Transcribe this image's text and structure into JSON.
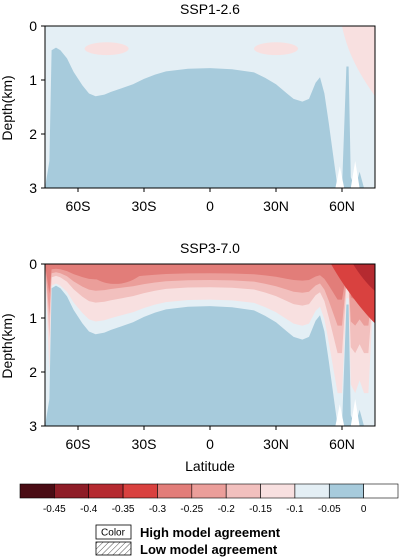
{
  "chart_data": [
    {
      "type": "contour",
      "title": "SSP1-2.6",
      "ylabel": "Depth(km)",
      "xlabel": "",
      "x_ticks": [
        "60S",
        "30S",
        "0",
        "30N",
        "60N"
      ],
      "y_ticks": [
        "0",
        "1",
        "2",
        "3"
      ],
      "xlim": [
        -75,
        75
      ],
      "ylim": [
        3,
        0
      ],
      "bathymetry_depth_km": [
        [
          -73,
          2.5
        ],
        [
          -72,
          0.45
        ],
        [
          -70,
          0.4
        ],
        [
          -68,
          0.45
        ],
        [
          -65,
          0.6
        ],
        [
          -62,
          0.85
        ],
        [
          -58,
          1.1
        ],
        [
          -55,
          1.25
        ],
        [
          -52,
          1.3
        ],
        [
          -48,
          1.27
        ],
        [
          -45,
          1.22
        ],
        [
          -40,
          1.15
        ],
        [
          -35,
          1.08
        ],
        [
          -30,
          0.98
        ],
        [
          -25,
          0.9
        ],
        [
          -20,
          0.84
        ],
        [
          -10,
          0.79
        ],
        [
          0,
          0.78
        ],
        [
          10,
          0.8
        ],
        [
          20,
          0.86
        ],
        [
          25,
          0.96
        ],
        [
          30,
          1.08
        ],
        [
          35,
          1.25
        ],
        [
          38,
          1.35
        ],
        [
          42,
          1.4
        ],
        [
          45,
          1.35
        ],
        [
          48,
          1.05
        ],
        [
          50,
          0.95
        ],
        [
          52,
          1.25
        ],
        [
          54,
          1.8
        ],
        [
          56,
          2.4
        ],
        [
          57,
          2.7
        ],
        [
          58,
          3.0
        ],
        [
          60,
          3.0
        ],
        [
          62,
          0.75
        ],
        [
          63,
          0.75
        ],
        [
          64,
          2.8
        ],
        [
          66,
          3.0
        ],
        [
          68,
          2.7
        ],
        [
          70,
          3.0
        ],
        [
          72,
          3.0
        ]
      ],
      "anomaly_regions": [
        {
          "level": "-0.1",
          "description": "thin surface bands near 40S and 40N; 60N-70N surface to ~1 km"
        },
        {
          "level": "-0.05",
          "description": "upper ~0.6 km ocean"
        }
      ]
    },
    {
      "type": "contour",
      "title": "SSP3-7.0",
      "ylabel": "Depth(km)",
      "xlabel": "Latitude",
      "x_ticks": [
        "60S",
        "30S",
        "0",
        "30N",
        "60N"
      ],
      "y_ticks": [
        "0",
        "1",
        "2",
        "3"
      ],
      "xlim": [
        -75,
        75
      ],
      "ylim": [
        3,
        0
      ],
      "bathymetry_depth_km": [
        [
          -73,
          2.5
        ],
        [
          -72,
          0.45
        ],
        [
          -70,
          0.4
        ],
        [
          -68,
          0.45
        ],
        [
          -65,
          0.6
        ],
        [
          -62,
          0.85
        ],
        [
          -58,
          1.1
        ],
        [
          -55,
          1.25
        ],
        [
          -52,
          1.3
        ],
        [
          -48,
          1.27
        ],
        [
          -45,
          1.22
        ],
        [
          -40,
          1.15
        ],
        [
          -35,
          1.08
        ],
        [
          -30,
          0.98
        ],
        [
          -25,
          0.9
        ],
        [
          -20,
          0.84
        ],
        [
          -10,
          0.79
        ],
        [
          0,
          0.78
        ],
        [
          10,
          0.8
        ],
        [
          20,
          0.86
        ],
        [
          25,
          0.96
        ],
        [
          30,
          1.08
        ],
        [
          35,
          1.25
        ],
        [
          38,
          1.35
        ],
        [
          42,
          1.4
        ],
        [
          45,
          1.35
        ],
        [
          48,
          1.05
        ],
        [
          50,
          0.95
        ],
        [
          52,
          1.25
        ],
        [
          54,
          1.8
        ],
        [
          56,
          2.4
        ],
        [
          57,
          2.7
        ],
        [
          58,
          3.0
        ],
        [
          60,
          3.0
        ],
        [
          62,
          0.75
        ],
        [
          63,
          0.75
        ],
        [
          64,
          2.8
        ],
        [
          66,
          3.0
        ],
        [
          68,
          2.7
        ],
        [
          70,
          3.0
        ],
        [
          72,
          3.0
        ]
      ],
      "anomaly_regions": [
        {
          "level": "-0.35",
          "description": "surface layer 45S-30S and 60N-70N"
        },
        {
          "level": "-0.25",
          "description": "upper ~0.2-0.3 km globally"
        },
        {
          "level": "-0.15",
          "description": "upper ~0.4 km"
        },
        {
          "level": "-0.05",
          "description": "down to ~0.7 km"
        }
      ]
    }
  ],
  "colorbar": {
    "ticks": [
      "-0.45",
      "-0.4",
      "-0.35",
      "-0.3",
      "-0.25",
      "-0.2",
      "-0.15",
      "-0.1",
      "-0.05",
      "0"
    ],
    "colors": [
      "#4a0c14",
      "#8e1d27",
      "#b52a30",
      "#d9413f",
      "#e27d79",
      "#eb9e9a",
      "#f2c0be",
      "#f8e0e0",
      "#e4eff5",
      "#a7cbdc",
      "#ffffff"
    ]
  },
  "legend": {
    "box_label": "Color",
    "high_agreement": "High model agreement",
    "low_agreement": "Low model agreement"
  },
  "colors": {
    "deep": "#a7cbdc",
    "upper": "#e4eff5",
    "weak": "#f8e0e0",
    "mild": "#f2c0be",
    "moderate": "#eb9e9a",
    "strong": "#e27d79",
    "intense": "#d9413f",
    "extreme": "#b52a30"
  }
}
